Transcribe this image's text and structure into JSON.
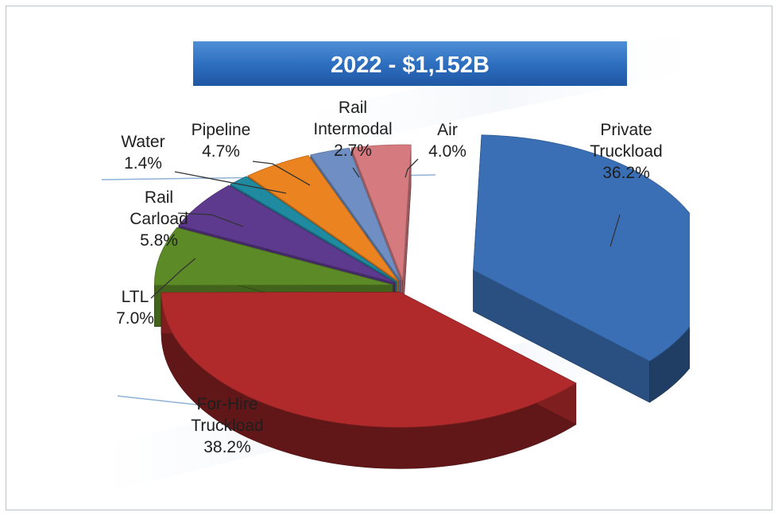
{
  "chart_data": {
    "type": "pie",
    "title": "2022 - $1,152B",
    "slices": [
      {
        "label_lines": [
          "Private",
          "Truckload"
        ],
        "value": 36.2,
        "value_label": "36.2%",
        "color": "#3a6fb5",
        "exploded": true
      },
      {
        "label_lines": [
          "For-Hire",
          "Truckload"
        ],
        "value": 38.2,
        "value_label": "38.2%",
        "color": "#b02a2b",
        "exploded": false
      },
      {
        "label_lines": [
          "LTL"
        ],
        "value": 7.0,
        "value_label": "7.0%",
        "color": "#5c8a26",
        "exploded": false
      },
      {
        "label_lines": [
          "Rail",
          "Carload"
        ],
        "value": 5.8,
        "value_label": "5.8%",
        "color": "#5e3a8f",
        "exploded": false
      },
      {
        "label_lines": [
          "Water"
        ],
        "value": 1.4,
        "value_label": "1.4%",
        "color": "#1f8aa0",
        "exploded": false
      },
      {
        "label_lines": [
          "Pipeline"
        ],
        "value": 4.7,
        "value_label": "4.7%",
        "color": "#ea8320",
        "exploded": false
      },
      {
        "label_lines": [
          "Rail",
          "Intermodal"
        ],
        "value": 2.7,
        "value_label": "2.7%",
        "color": "#6f8fc4",
        "exploded": false
      },
      {
        "label_lines": [
          "Air"
        ],
        "value": 4.0,
        "value_label": "4.0%",
        "color": "#d57b80",
        "exploded": false
      }
    ]
  }
}
